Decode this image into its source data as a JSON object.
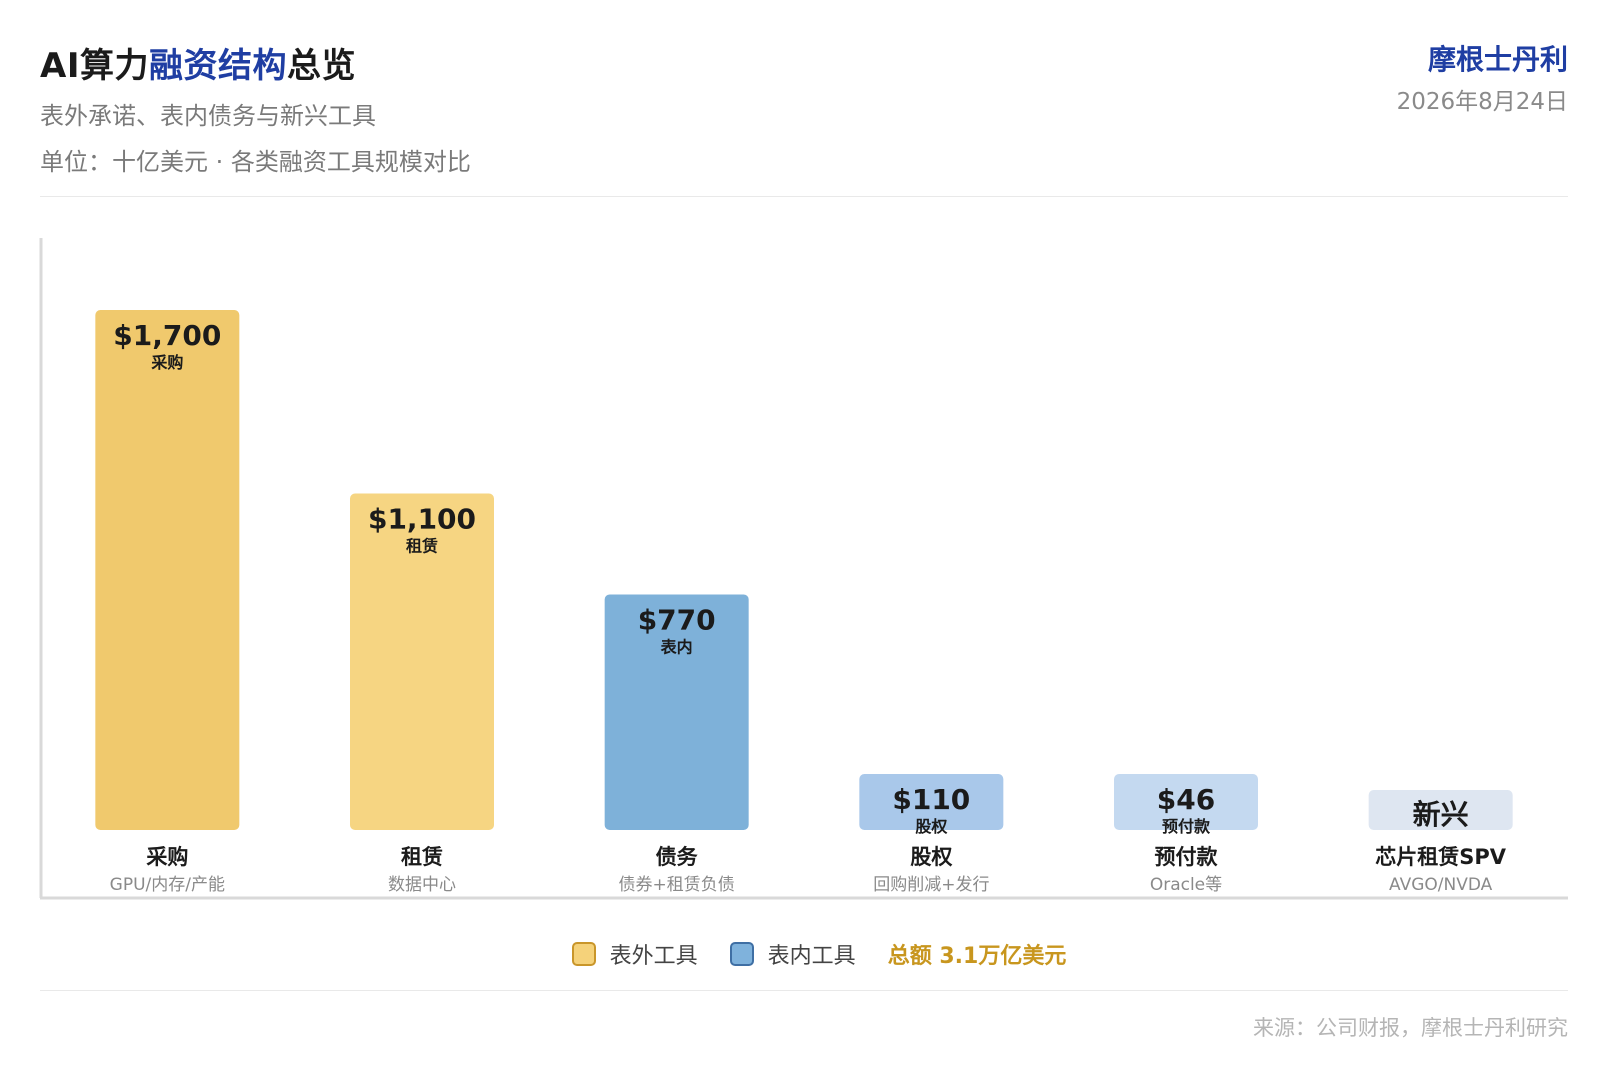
{
  "header": {
    "title_prefix": "AI算力",
    "title_highlight": "融资结构",
    "title_suffix": "总览",
    "subtitle": "表外承诺、表内债务与新兴工具",
    "unit_line": "单位：十亿美元 · 各类融资工具规模对比",
    "brand": "摩根士丹利",
    "date": "2026年8月24日"
  },
  "legend": {
    "items": [
      {
        "label": "表外工具",
        "color": "#f5d27a",
        "border": "#c9962a"
      },
      {
        "label": "表内工具",
        "color": "#7fb2dc",
        "border": "#3f6fa4"
      }
    ],
    "total": "总额 3.1万亿美元"
  },
  "source": "来源：公司财报，摩根士丹利研究",
  "chart_data": {
    "type": "bar",
    "categories": [
      "采购",
      "租赁",
      "债务",
      "股权",
      "预付款",
      "芯片租赁SPV"
    ],
    "category_sublabels": [
      "GPU/内存/产能",
      "数据中心",
      "债券+租赁负债",
      "回购削减+发行",
      "Oracle等",
      "AVGO/NVDA"
    ],
    "values": [
      1700,
      1100,
      770,
      110,
      46,
      null
    ],
    "value_labels": [
      "$1,700",
      "$1,100",
      "$770",
      "$110",
      "$46",
      "新兴"
    ],
    "bar_tags": [
      "采购",
      "租赁",
      "表内",
      "股权",
      "预付款",
      ""
    ],
    "colors": [
      "#f0c96d",
      "#f6d582",
      "#7eb1d9",
      "#a9c8ea",
      "#c4d9f0",
      "#dee6f1"
    ],
    "groups": [
      "表外工具",
      "表外工具",
      "表内工具",
      "表内工具",
      "表内工具",
      ""
    ],
    "ylim": [
      0,
      1900
    ],
    "grid": false,
    "legend_position": "bottom-center"
  }
}
